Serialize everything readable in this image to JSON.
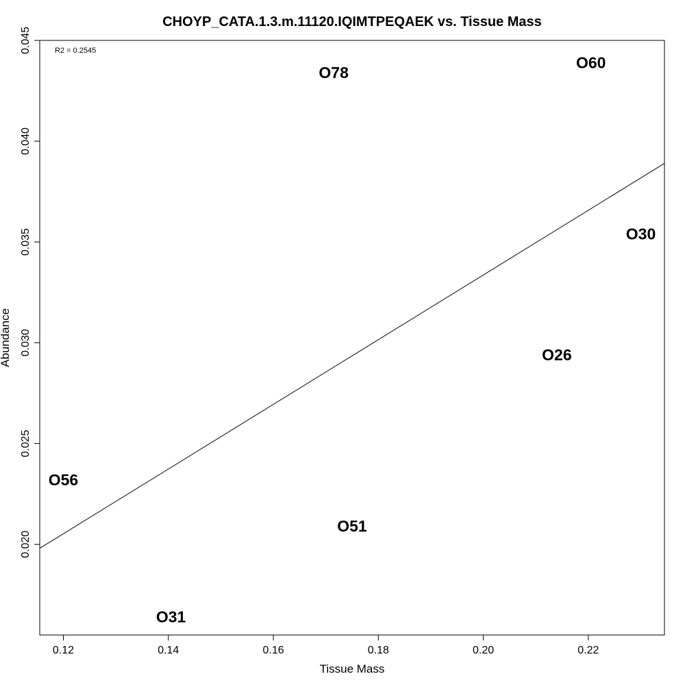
{
  "chart_data": {
    "type": "scatter",
    "title": "CHOYP_CATA.1.3.m.11120.IQIMTPEQAEK vs. Tissue Mass",
    "xlabel": "Tissue Mass",
    "ylabel": "Abundance",
    "xlim": [
      0.1155,
      0.2345
    ],
    "ylim": [
      0.0155,
      0.045
    ],
    "xticks": [
      0.12,
      0.14,
      0.16,
      0.18,
      0.2,
      0.22
    ],
    "xtick_labels": [
      "0.12",
      "0.14",
      "0.16",
      "0.18",
      "0.20",
      "0.22"
    ],
    "yticks": [
      0.02,
      0.025,
      0.03,
      0.035,
      0.04,
      0.045
    ],
    "ytick_labels": [
      "0.020",
      "0.025",
      "0.030",
      "0.035",
      "0.040",
      "0.045"
    ],
    "grid": false,
    "annotation": "R2 = 0.2545",
    "points": [
      {
        "label": "O78",
        "x": 0.1715,
        "y": 0.0434
      },
      {
        "label": "O60",
        "x": 0.2205,
        "y": 0.0439
      },
      {
        "label": "O30",
        "x": 0.23,
        "y": 0.0354
      },
      {
        "label": "O26",
        "x": 0.214,
        "y": 0.0294
      },
      {
        "label": "O56",
        "x": 0.12,
        "y": 0.0232
      },
      {
        "label": "O51",
        "x": 0.175,
        "y": 0.0209
      },
      {
        "label": "O31",
        "x": 0.1405,
        "y": 0.0164
      }
    ],
    "regression_line": {
      "x": [
        0.1155,
        0.2345
      ],
      "y": [
        0.0198,
        0.0389
      ]
    }
  }
}
